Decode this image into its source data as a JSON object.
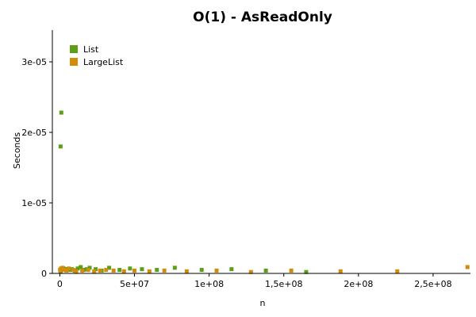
{
  "chart_data": {
    "type": "scatter",
    "title": "O(1) - AsReadOnly",
    "xlabel": "n",
    "ylabel": "Seconds",
    "xlim": [
      -5000000,
      275000000
    ],
    "ylim": [
      0,
      3.45e-05
    ],
    "x_ticks": [
      {
        "value": 0,
        "label": "0"
      },
      {
        "value": 50000000,
        "label": "5e+07"
      },
      {
        "value": 100000000,
        "label": "1e+08"
      },
      {
        "value": 150000000,
        "label": "1,5e+08"
      },
      {
        "value": 200000000,
        "label": "2e+08"
      },
      {
        "value": 250000000,
        "label": "2,5e+08"
      }
    ],
    "y_ticks": [
      {
        "value": 0,
        "label": "0"
      },
      {
        "value": 1e-05,
        "label": "1e-05"
      },
      {
        "value": 2e-05,
        "label": "2e-05"
      },
      {
        "value": 3e-05,
        "label": "3e-05"
      }
    ],
    "grid": false,
    "legend_position": "top-left",
    "series": [
      {
        "name": "List",
        "color": "#5a9e1a",
        "points": [
          [
            1000000,
            2.28e-05
          ],
          [
            500000,
            1.8e-05
          ],
          [
            200000,
            5e-07
          ],
          [
            600000,
            3e-07
          ],
          [
            1500000,
            6e-07
          ],
          [
            2500000,
            7e-07
          ],
          [
            3500000,
            6e-07
          ],
          [
            5000000,
            6e-07
          ],
          [
            6500000,
            5e-07
          ],
          [
            8000000,
            6e-07
          ],
          [
            10000000,
            4e-07
          ],
          [
            12000000,
            7e-07
          ],
          [
            14000000,
            9e-07
          ],
          [
            16000000,
            5e-07
          ],
          [
            18000000,
            6e-07
          ],
          [
            20000000,
            8e-07
          ],
          [
            24000000,
            6e-07
          ],
          [
            28000000,
            4e-07
          ],
          [
            33000000,
            8e-07
          ],
          [
            40000000,
            5e-07
          ],
          [
            47000000,
            7e-07
          ],
          [
            55000000,
            6e-07
          ],
          [
            65000000,
            5e-07
          ],
          [
            77000000,
            8e-07
          ],
          [
            95000000,
            5e-07
          ],
          [
            115000000,
            6e-07
          ],
          [
            138000000,
            4e-07
          ],
          [
            165000000,
            2e-07
          ]
        ]
      },
      {
        "name": "LargeList",
        "color": "#d08c0a",
        "points": [
          [
            300000,
            4e-07
          ],
          [
            800000,
            7e-07
          ],
          [
            1800000,
            8e-07
          ],
          [
            3000000,
            5e-07
          ],
          [
            4500000,
            4e-07
          ],
          [
            6000000,
            7e-07
          ],
          [
            9000000,
            5e-07
          ],
          [
            11000000,
            3e-07
          ],
          [
            15000000,
            4e-07
          ],
          [
            19000000,
            5e-07
          ],
          [
            23000000,
            3e-07
          ],
          [
            27000000,
            4e-07
          ],
          [
            31000000,
            5e-07
          ],
          [
            36000000,
            4e-07
          ],
          [
            43000000,
            3e-07
          ],
          [
            50000000,
            4e-07
          ],
          [
            60000000,
            3e-07
          ],
          [
            70000000,
            4e-07
          ],
          [
            85000000,
            3e-07
          ],
          [
            105000000,
            4e-07
          ],
          [
            128000000,
            2e-07
          ],
          [
            155000000,
            4e-07
          ],
          [
            188000000,
            3e-07
          ],
          [
            226000000,
            3e-07
          ],
          [
            273000000,
            9e-07
          ]
        ]
      }
    ]
  }
}
